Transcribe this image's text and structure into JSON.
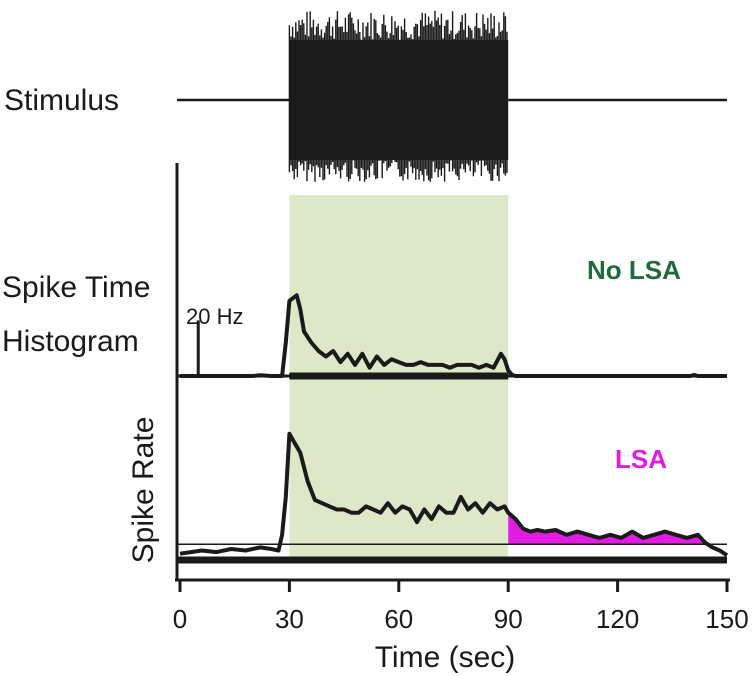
{
  "chart_data": {
    "type": "line",
    "title": "",
    "xlabel": "Time (sec)",
    "ylabel": "Spike Rate",
    "xlim": [
      0,
      150
    ],
    "x_ticks": [
      0,
      30,
      60,
      90,
      120,
      150
    ],
    "stimulus": {
      "label": "Stimulus",
      "on": 30,
      "off": 90
    },
    "shaded_region": {
      "x_start": 30,
      "x_end": 90,
      "color": "#dde8c8"
    },
    "scale_bar": {
      "label": "20 Hz",
      "x": 5,
      "value_hz": 20
    },
    "panels": [
      {
        "name": "Spike Time Histogram",
        "row_label_line1": "Spike Time",
        "row_label_line2": "Histogram",
        "series_label": "No LSA",
        "series_color": "#1f6b3a",
        "ylim": [
          0,
          32
        ],
        "x": [
          0,
          10,
          20,
          22,
          25,
          27,
          28,
          29,
          30,
          31,
          32,
          33,
          34,
          36,
          38,
          40,
          42,
          44,
          46,
          48,
          50,
          52,
          54,
          56,
          58,
          60,
          62,
          64,
          66,
          68,
          70,
          72,
          74,
          76,
          78,
          80,
          82,
          84,
          86,
          88,
          89,
          90,
          91,
          92,
          100,
          110,
          120,
          130,
          140,
          141,
          142,
          150
        ],
        "y": [
          0,
          0,
          0,
          0.3,
          0,
          0,
          0,
          12,
          27,
          28,
          29,
          24,
          16,
          12,
          9,
          7,
          9,
          5,
          8,
          4,
          8,
          3,
          7,
          4,
          6,
          5,
          4,
          4,
          5,
          4,
          4,
          4,
          3,
          4,
          4,
          4,
          3,
          4,
          3,
          8,
          6,
          2,
          0.5,
          0,
          0,
          0,
          0,
          0,
          0,
          0.4,
          0,
          0
        ]
      },
      {
        "name": "Spike Rate",
        "series_label": "LSA",
        "series_color": "#e31ce3",
        "baseline_value": 5,
        "ylim": [
          0,
          45
        ],
        "x": [
          0,
          3,
          6,
          10,
          14,
          18,
          22,
          25,
          27,
          28,
          29,
          30,
          31,
          33,
          35,
          37,
          39,
          41,
          43,
          45,
          47,
          49,
          51,
          53,
          55,
          57,
          59,
          61,
          63,
          65,
          67,
          69,
          71,
          73,
          75,
          77,
          79,
          81,
          83,
          85,
          87,
          89,
          90,
          92,
          94,
          96,
          98,
          100,
          103,
          106,
          109,
          112,
          115,
          118,
          121,
          124,
          127,
          130,
          133,
          136,
          139,
          142,
          144,
          146,
          148,
          150
        ],
        "y": [
          2,
          2.5,
          3,
          2.5,
          3.5,
          3,
          4,
          3.5,
          3,
          8,
          20,
          40,
          38,
          34,
          25,
          19,
          18,
          17,
          16,
          16,
          15,
          15,
          17,
          16,
          15,
          18,
          15,
          17,
          16,
          12,
          16,
          13,
          17,
          15,
          15,
          20,
          16,
          18,
          15,
          18,
          16,
          17,
          15,
          13,
          10,
          9,
          9.5,
          9,
          9.5,
          8,
          9,
          8,
          7,
          8,
          7,
          9,
          7,
          8,
          9,
          8,
          7,
          8,
          5.5,
          4,
          3,
          1.5
        ]
      }
    ]
  }
}
